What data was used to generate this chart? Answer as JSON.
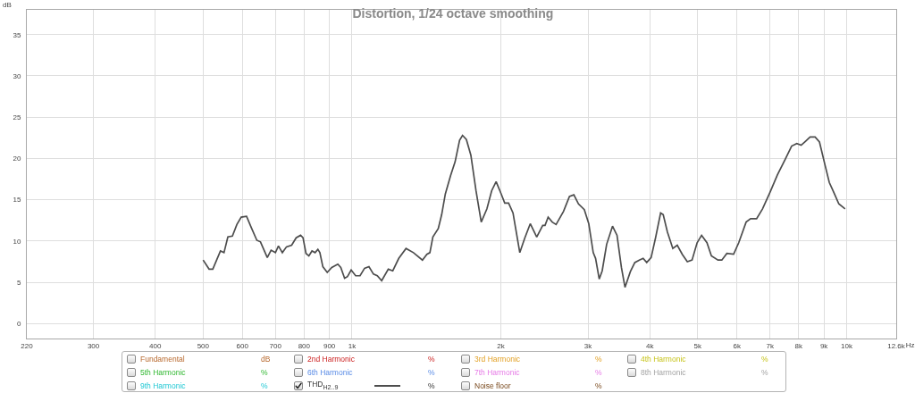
{
  "chart_data": {
    "type": "line",
    "title": "Distortion, 1/24 octave smoothing",
    "xlabel": "Hz",
    "ylabel": "dB",
    "log": "x",
    "grid": true,
    "legend": "bottom",
    "xlim": [
      220,
      12600
    ],
    "xticks": [
      220,
      300,
      400,
      500,
      600,
      700,
      800,
      900,
      {
        "value": 1000,
        "label": "1k"
      },
      {
        "value": 2000,
        "label": "2k"
      },
      {
        "value": 3000,
        "label": "3k"
      },
      {
        "value": 4000,
        "label": "4k"
      },
      {
        "value": 5000,
        "label": "5k"
      },
      {
        "value": 6000,
        "label": "6k"
      },
      {
        "value": 7000,
        "label": "7k"
      },
      {
        "value": 8000,
        "label": "8k"
      },
      {
        "value": 9000,
        "label": "9k"
      },
      {
        "value": 10000,
        "label": "10k"
      },
      {
        "value": 12600,
        "label": "12.6k"
      }
    ],
    "ylim": [
      -1.8,
      38
    ],
    "yticks": [
      0,
      5,
      10,
      15,
      20,
      25,
      30,
      35
    ],
    "annotations": [
      "Fundamental",
      "dB",
      "2nd Harmonic",
      "%",
      "3rd Harmonic",
      "%",
      "4th Harmonic",
      "%",
      "5th Harmonic",
      "%",
      "6th Harmonic",
      "%",
      "7th Harmonic",
      "%",
      "8th Harmonic",
      "%",
      "9th Harmonic",
      "%",
      "%",
      "Noise floor",
      "%"
    ],
    "x": [
      500,
      514,
      523,
      542,
      551,
      561,
      573,
      585,
      597,
      612,
      626,
      642,
      653,
      674,
      686,
      700,
      710,
      723,
      737,
      755,
      771,
      787,
      796,
      807,
      818,
      830,
      842,
      853,
      861,
      873,
      891,
      910,
      936,
      949,
      966,
      979,
      996,
      1017,
      1038,
      1060,
      1082,
      1105,
      1125,
      1148,
      1184,
      1209,
      1243,
      1286,
      1331,
      1388,
      1417,
      1437,
      1457,
      1494,
      1518,
      1544,
      1582,
      1616,
      1650,
      1673,
      1703,
      1739,
      1781,
      1825,
      1874,
      1916,
      1956,
      2003,
      2036,
      2073,
      2116,
      2184,
      2236,
      2293,
      2363,
      2430,
      2456,
      2492,
      2540,
      2586,
      2677,
      2752,
      2809,
      2870,
      2949,
      3011,
      3074,
      3108,
      3161,
      3205,
      3272,
      3363,
      3434,
      3505,
      3564,
      3654,
      3731,
      3809,
      3878,
      3943,
      4025,
      4109,
      4207,
      4258,
      4342,
      4453,
      4546,
      4653,
      4764,
      4870,
      4986,
      5091,
      5220,
      5329,
      5494,
      5594,
      5727,
      5910,
      6052,
      6264,
      6396,
      6577,
      6761,
      7000,
      7245,
      7499,
      7742,
      7930,
      8093,
      8263,
      8437,
      8636,
      8814,
      9036,
      9226,
      9421,
      9645,
      9931
    ],
    "series": [
      {
        "name": "THD$_{H2..9}$",
        "color": "#4d4d4d",
        "values": [
          7.7,
          6.6,
          6.6,
          8.8,
          8.6,
          10.5,
          10.6,
          12.0,
          12.9,
          13.0,
          11.6,
          10.1,
          9.9,
          8.0,
          8.9,
          8.6,
          9.4,
          8.6,
          9.3,
          9.5,
          10.4,
          10.7,
          10.4,
          8.5,
          8.2,
          8.8,
          8.6,
          9.0,
          8.6,
          6.9,
          6.2,
          6.8,
          7.2,
          6.8,
          5.5,
          5.7,
          6.5,
          5.8,
          5.8,
          6.7,
          6.9,
          6.0,
          5.8,
          5.2,
          6.6,
          6.4,
          7.9,
          9.1,
          8.6,
          7.7,
          8.4,
          8.6,
          10.5,
          11.5,
          13.2,
          15.7,
          17.9,
          19.6,
          22.2,
          22.8,
          22.3,
          20.4,
          16.1,
          12.3,
          13.9,
          16.1,
          17.2,
          15.7,
          14.6,
          14.6,
          13.4,
          8.6,
          10.4,
          12.1,
          10.5,
          11.9,
          11.9,
          12.9,
          12.3,
          12.0,
          13.6,
          15.4,
          15.6,
          14.5,
          13.8,
          12.1,
          8.6,
          7.9,
          5.4,
          6.4,
          9.6,
          11.8,
          10.7,
          6.8,
          4.4,
          6.3,
          7.4,
          7.7,
          7.9,
          7.4,
          8.0,
          10.4,
          13.4,
          13.2,
          11.1,
          9.1,
          9.5,
          8.4,
          7.5,
          7.7,
          9.8,
          10.7,
          9.8,
          8.2,
          7.7,
          7.7,
          8.5,
          8.4,
          9.8,
          12.3,
          12.7,
          12.7,
          13.9,
          15.9,
          18.0,
          19.8,
          21.5,
          21.8,
          21.6,
          22.1,
          22.6,
          22.6,
          22.0,
          19.3,
          17.1,
          15.9,
          14.5,
          13.9
        ]
      }
    ]
  }
}
